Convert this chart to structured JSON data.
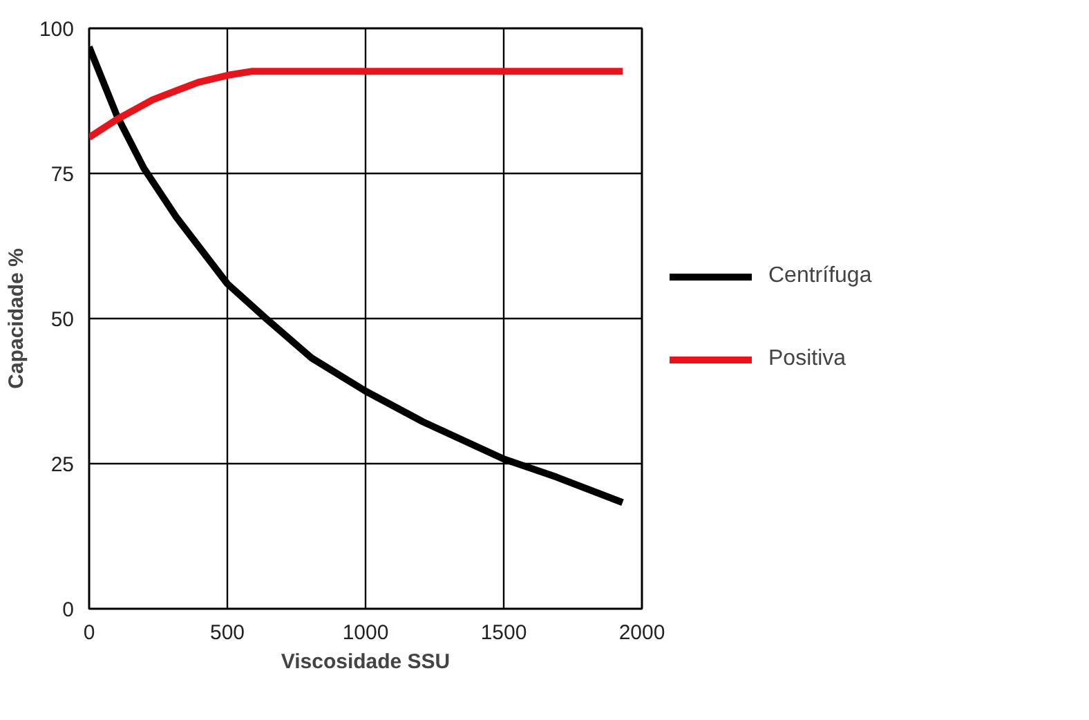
{
  "chart_data": {
    "type": "line",
    "xlabel": "Viscosidade SSU",
    "ylabel": "Capacidade %",
    "xlim": [
      0,
      2000
    ],
    "ylim": [
      0,
      100
    ],
    "xticks": [
      0,
      500,
      1000,
      1500,
      2000
    ],
    "yticks": [
      0,
      25,
      50,
      75,
      100
    ],
    "grid": true,
    "legend": "right",
    "marker": "none",
    "line_style": "solid",
    "series": [
      {
        "name": "Centrífuga",
        "color": "#000000",
        "x": [
          0,
          100,
          198,
          315,
          500,
          640,
          805,
          1000,
          1208,
          1500,
          1690,
          1930
        ],
        "values": [
          96.8,
          85,
          75.9,
          67.5,
          56,
          50,
          43.2,
          37.5,
          32.2,
          25.8,
          22.7,
          18.3
        ]
      },
      {
        "name": "Positiva",
        "color": "#e8141c",
        "x": [
          0,
          100,
          230,
          395,
          500,
          590,
          1930
        ],
        "values": [
          81.2,
          84.3,
          87.7,
          90.7,
          91.9,
          92.6,
          92.6
        ]
      }
    ]
  }
}
